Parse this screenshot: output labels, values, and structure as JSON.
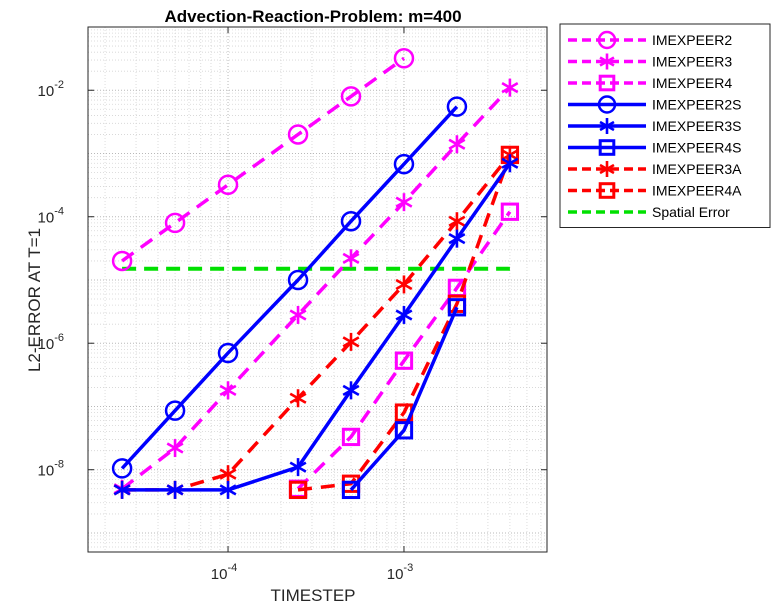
{
  "chart_data": {
    "type": "line",
    "title": "Advection-Reaction-Problem: m=400",
    "xlabel": "TIMESTEP",
    "ylabel": "L2-ERROR AT T=1",
    "xscale": "log",
    "yscale": "log",
    "xlim": [
      1.6e-05,
      0.0065
    ],
    "ylim": [
      5e-10,
      0.1
    ],
    "grid": true,
    "minor_grid": true,
    "legend_position": "outside-top-right",
    "x_ticks": [
      {
        "value": 0.0001,
        "base": "10",
        "exp": "-4"
      },
      {
        "value": 0.001,
        "base": "10",
        "exp": "-3"
      }
    ],
    "y_ticks": [
      {
        "value": 1e-08,
        "base": "10",
        "exp": "-8"
      },
      {
        "value": 1e-06,
        "base": "10",
        "exp": "-6"
      },
      {
        "value": 0.0001,
        "base": "10",
        "exp": "-4"
      },
      {
        "value": 0.01,
        "base": "10",
        "exp": "-2"
      }
    ],
    "series": [
      {
        "name": "IMEXPEER2",
        "color": "#ff00ff",
        "line": "dashed",
        "marker": "circle",
        "x": [
          2.5e-05,
          5e-05,
          0.0001,
          0.00025,
          0.0005,
          0.001
        ],
        "y": [
          2e-05,
          8e-05,
          0.00032,
          0.002,
          0.008,
          0.032
        ]
      },
      {
        "name": "IMEXPEER3",
        "color": "#ff00ff",
        "line": "dashed",
        "marker": "asterisk",
        "x": [
          2.5e-05,
          5e-05,
          0.0001,
          0.00025,
          0.0005,
          0.001,
          0.002,
          0.004
        ],
        "y": [
          5e-09,
          2.2e-08,
          1.8e-07,
          2.8e-06,
          2.2e-05,
          0.00017,
          0.0014,
          0.011
        ]
      },
      {
        "name": "IMEXPEER4",
        "color": "#ff00ff",
        "line": "dashed",
        "marker": "square",
        "x": [
          0.00025,
          0.0005,
          0.001,
          0.002,
          0.004
        ],
        "y": [
          5e-09,
          3.3e-08,
          5.3e-07,
          7.5e-06,
          0.00012
        ]
      },
      {
        "name": "IMEXPEER2S",
        "color": "#0000ff",
        "line": "solid",
        "marker": "circle",
        "x": [
          2.5e-05,
          5e-05,
          0.0001,
          0.00025,
          0.0005,
          0.001,
          0.002
        ],
        "y": [
          1.05e-08,
          8.6e-08,
          7e-07,
          1e-05,
          8.5e-05,
          0.00068,
          0.0055
        ]
      },
      {
        "name": "IMEXPEER3S",
        "color": "#0000ff",
        "line": "solid",
        "marker": "asterisk",
        "x": [
          2.5e-05,
          5e-05,
          0.0001,
          0.00025,
          0.0005,
          0.001,
          0.002,
          0.004
        ],
        "y": [
          4.8e-09,
          4.8e-09,
          4.8e-09,
          1.1e-08,
          1.8e-07,
          2.8e-06,
          4.5e-05,
          0.0007
        ]
      },
      {
        "name": "IMEXPEER4S",
        "color": "#0000ff",
        "line": "solid",
        "marker": "square",
        "x": [
          0.0005,
          0.001,
          0.002
        ],
        "y": [
          4.8e-09,
          4.2e-08,
          3.7e-06
        ]
      },
      {
        "name": "IMEXPEER3A",
        "color": "#ff0000",
        "line": "dashed",
        "marker": "asterisk",
        "x": [
          2.5e-05,
          5e-05,
          0.0001,
          0.00025,
          0.0005,
          0.001,
          0.002,
          0.004
        ],
        "y": [
          4.8e-09,
          4.8e-09,
          8.5e-09,
          1.35e-07,
          1.05e-06,
          8.5e-06,
          8.5e-05,
          0.00095
        ]
      },
      {
        "name": "IMEXPEER4A",
        "color": "#ff0000",
        "line": "dashed",
        "marker": "square",
        "x": [
          0.00025,
          0.0005,
          0.001,
          0.002,
          0.004
        ],
        "y": [
          4.8e-09,
          6e-09,
          8e-08,
          4.2e-06,
          0.00095
        ]
      },
      {
        "name": "Spatial Error",
        "color": "#00e000",
        "line": "dashed",
        "marker": "none",
        "x": [
          2.5e-05,
          0.004
        ],
        "y": [
          1.5e-05,
          1.5e-05
        ]
      }
    ]
  }
}
